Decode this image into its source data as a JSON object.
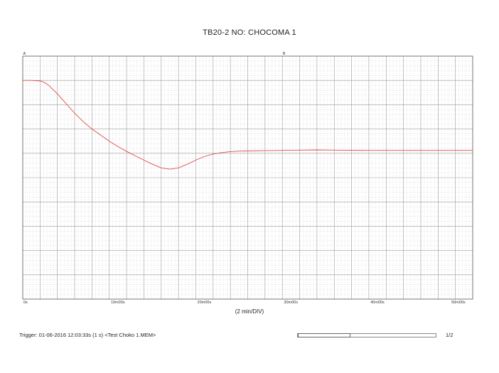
{
  "chart_data": {
    "type": "line",
    "title": "TB20-2 NO: CHOCOMA 1",
    "xlabel": "(2 min/DIV)",
    "ylabel": "",
    "x_unit": "minutes",
    "x_ticks": [
      {
        "value": 0,
        "label": "0s"
      },
      {
        "value": 10,
        "label": "10m00s"
      },
      {
        "value": 20,
        "label": "20m00s"
      },
      {
        "value": 30,
        "label": "30m00s"
      },
      {
        "value": 40,
        "label": "40m00s"
      },
      {
        "value": 50,
        "label": "50m00s"
      }
    ],
    "xlim": [
      0,
      52
    ],
    "ylim": [
      0,
      10
    ],
    "grid": true,
    "cursors": [
      {
        "label": "A",
        "x": 0
      },
      {
        "label": "B",
        "x": 30
      }
    ],
    "series": [
      {
        "color": "#e04a4a",
        "x": [
          0,
          1,
          2,
          2.5,
          3,
          4,
          5,
          6,
          7,
          8,
          9,
          10,
          11,
          12,
          13,
          14,
          15,
          16,
          17,
          18,
          19,
          20,
          21,
          22,
          23,
          24,
          25,
          26,
          28,
          30,
          32,
          34,
          36,
          40,
          44,
          48,
          52
        ],
        "y": [
          9.0,
          9.0,
          8.98,
          8.92,
          8.8,
          8.45,
          8.05,
          7.65,
          7.3,
          7.0,
          6.75,
          6.5,
          6.28,
          6.08,
          5.9,
          5.72,
          5.55,
          5.4,
          5.35,
          5.4,
          5.55,
          5.72,
          5.87,
          5.97,
          6.03,
          6.07,
          6.09,
          6.1,
          6.11,
          6.12,
          6.13,
          6.14,
          6.13,
          6.12,
          6.12,
          6.12,
          6.12
        ]
      }
    ]
  },
  "footer": {
    "trigger": "Trigger: 01-06-2016 12:03:33s (1 s) <Test Choko 1.MEM>",
    "page": "1/2"
  }
}
